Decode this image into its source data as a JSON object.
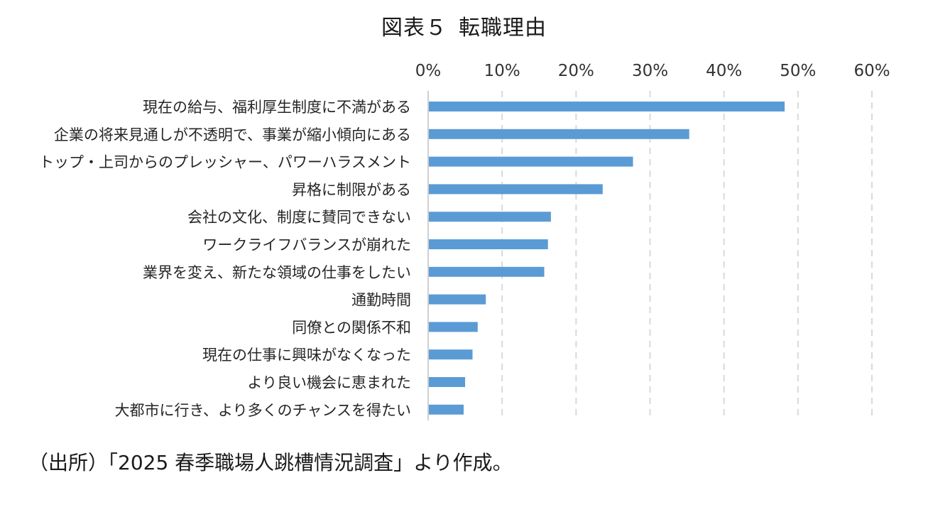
{
  "chart_data": {
    "type": "bar",
    "orientation": "horizontal",
    "title_parts": [
      "図表５",
      "転職理由"
    ],
    "x_tick_labels": [
      "0%",
      "10%",
      "20%",
      "30%",
      "40%",
      "50%",
      "60%"
    ],
    "xlim": [
      0,
      60
    ],
    "x_axis_position": "top",
    "grid": "vertical-dashed",
    "bar_color": "#5b9bd5",
    "categories": [
      "現在の給与、福利厚生制度に不満がある",
      "企業の将来見通しが不透明で、事業が縮小傾向にある",
      "トップ・上司からのプレッシャー、パワーハラスメント",
      "昇格に制限がある",
      "会社の文化、制度に賛同できない",
      "ワークライフバランスが崩れた",
      "業界を変え、新たな領域の仕事をしたい",
      "通勤時間",
      "同僚との関係不和",
      "現在の仕事に興味がなくなった",
      "より良い機会に恵まれた",
      "大都市に行き、より多くのチャンスを得たい"
    ],
    "values": [
      48.2,
      35.3,
      27.7,
      23.6,
      16.6,
      16.2,
      15.7,
      7.8,
      6.7,
      6.0,
      5.0,
      4.8
    ]
  },
  "source_note": "（出所）「2025 春季職場人跳槽情況調査」より作成。"
}
